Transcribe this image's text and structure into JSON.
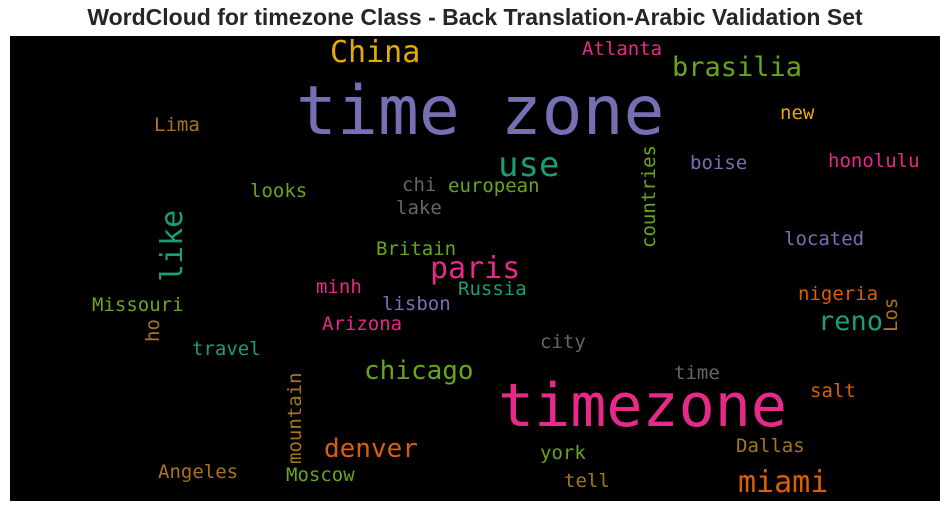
{
  "chart_data": {
    "type": "wordcloud",
    "title": "WordCloud for timezone Class - Back Translation-Arabic Validation Set",
    "background": "#000000",
    "words": [
      {
        "text": "time zone",
        "color": "#7570b3"
      },
      {
        "text": "timezone",
        "color": "#e7298a"
      },
      {
        "text": "China",
        "color": "#e6ab02"
      },
      {
        "text": "brasilia",
        "color": "#66a61e"
      },
      {
        "text": "Atlanta",
        "color": "#e7298a"
      },
      {
        "text": "use",
        "color": "#1b9e77"
      },
      {
        "text": "miami",
        "color": "#d95f02"
      },
      {
        "text": "paris",
        "color": "#e7298a"
      },
      {
        "text": "chicago",
        "color": "#66a61e"
      },
      {
        "text": "denver",
        "color": "#d95f02"
      },
      {
        "text": "like",
        "color": "#1b9e77"
      },
      {
        "text": "reno",
        "color": "#1b9e77"
      },
      {
        "text": "Lima",
        "color": "#a6761d"
      },
      {
        "text": "new",
        "color": "#e6ab02"
      },
      {
        "text": "boise",
        "color": "#7570b3"
      },
      {
        "text": "honolulu",
        "color": "#e7298a"
      },
      {
        "text": "countries",
        "color": "#66a61e"
      },
      {
        "text": "looks",
        "color": "#66a61e"
      },
      {
        "text": "chi",
        "color": "#666666"
      },
      {
        "text": "european",
        "color": "#66a61e"
      },
      {
        "text": "lake",
        "color": "#666666"
      },
      {
        "text": "located",
        "color": "#7570b3"
      },
      {
        "text": "Britain",
        "color": "#66a61e"
      },
      {
        "text": "minh",
        "color": "#e7298a"
      },
      {
        "text": "Russia",
        "color": "#1b9e77"
      },
      {
        "text": "lisbon",
        "color": "#7570b3"
      },
      {
        "text": "Missouri",
        "color": "#66a61e"
      },
      {
        "text": "ho",
        "color": "#a6761d"
      },
      {
        "text": "Arizona",
        "color": "#e7298a"
      },
      {
        "text": "nigeria",
        "color": "#d95f02"
      },
      {
        "text": "Los",
        "color": "#a6761d"
      },
      {
        "text": "travel",
        "color": "#1b9e77"
      },
      {
        "text": "city",
        "color": "#666666"
      },
      {
        "text": "time",
        "color": "#666666"
      },
      {
        "text": "salt",
        "color": "#d95f02"
      },
      {
        "text": "mountain",
        "color": "#a6761d"
      },
      {
        "text": "Angeles",
        "color": "#a6761d"
      },
      {
        "text": "Moscow",
        "color": "#66a61e"
      },
      {
        "text": "york",
        "color": "#66a61e"
      },
      {
        "text": "Dallas",
        "color": "#a6761d"
      },
      {
        "text": "tell",
        "color": "#a6761d"
      }
    ]
  }
}
